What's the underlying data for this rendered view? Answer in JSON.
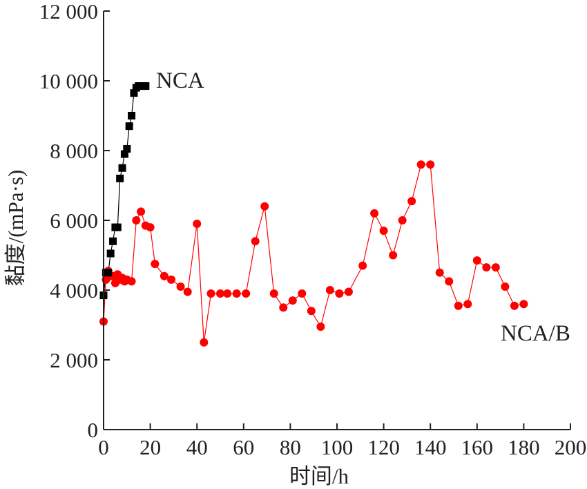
{
  "chart_data": {
    "type": "scatter",
    "title": "",
    "xlabel": "时间/h",
    "ylabel": "黏度/(mPa·s)",
    "xlim": [
      0,
      200
    ],
    "ylim": [
      0,
      12000
    ],
    "x_ticks": [
      0,
      20,
      40,
      60,
      80,
      100,
      120,
      140,
      160,
      180,
      200
    ],
    "x_tick_labels": [
      "0",
      "20",
      "40",
      "60",
      "80",
      "100",
      "120",
      "140",
      "160",
      "180",
      "200"
    ],
    "y_ticks": [
      0,
      2000,
      4000,
      6000,
      8000,
      10000,
      12000
    ],
    "y_tick_labels": [
      "0",
      "2 000",
      "4 000",
      "6 000",
      "8 000",
      "10 000",
      "12 000"
    ],
    "grid": false,
    "series": [
      {
        "name": "NCA",
        "color": "#000000",
        "marker": "square",
        "x": [
          0,
          1,
          2,
          3,
          4,
          5,
          6,
          7,
          8,
          9,
          10,
          11,
          12,
          13,
          14,
          15,
          16,
          17,
          18
        ],
        "y": [
          3850,
          4500,
          4500,
          5050,
          5400,
          5800,
          5800,
          7200,
          7500,
          7900,
          8050,
          8700,
          9000,
          9650,
          9800,
          9850,
          9850,
          9850,
          9850
        ]
      },
      {
        "name": "NCA/B",
        "color": "#ff0000",
        "marker": "circle",
        "x": [
          0,
          1,
          2,
          3,
          4,
          5,
          6,
          7,
          8,
          9,
          10,
          12,
          14,
          16,
          18,
          20,
          22,
          26,
          29,
          33,
          36,
          40,
          43,
          46,
          50,
          53,
          57,
          61,
          65,
          69,
          73,
          77,
          81,
          85,
          89,
          93,
          97,
          101,
          105,
          111,
          116,
          120,
          124,
          128,
          132,
          136,
          140,
          144,
          148,
          152,
          156,
          160,
          164,
          168,
          172,
          176,
          180
        ],
        "y": [
          3100,
          4300,
          4550,
          4400,
          4400,
          4200,
          4450,
          4300,
          4350,
          4250,
          4300,
          4250,
          6000,
          6250,
          5850,
          5800,
          4750,
          4400,
          4300,
          4100,
          3950,
          5900,
          2500,
          3900,
          3900,
          3900,
          3900,
          3900,
          5400,
          6400,
          3900,
          3500,
          3700,
          3900,
          3400,
          2950,
          4000,
          3900,
          3950,
          4700,
          6200,
          5700,
          5000,
          6000,
          6550,
          7600,
          7600,
          4500,
          4250,
          3550,
          3600,
          4850,
          4650,
          4650,
          4100,
          3550,
          3600
        ]
      }
    ]
  }
}
